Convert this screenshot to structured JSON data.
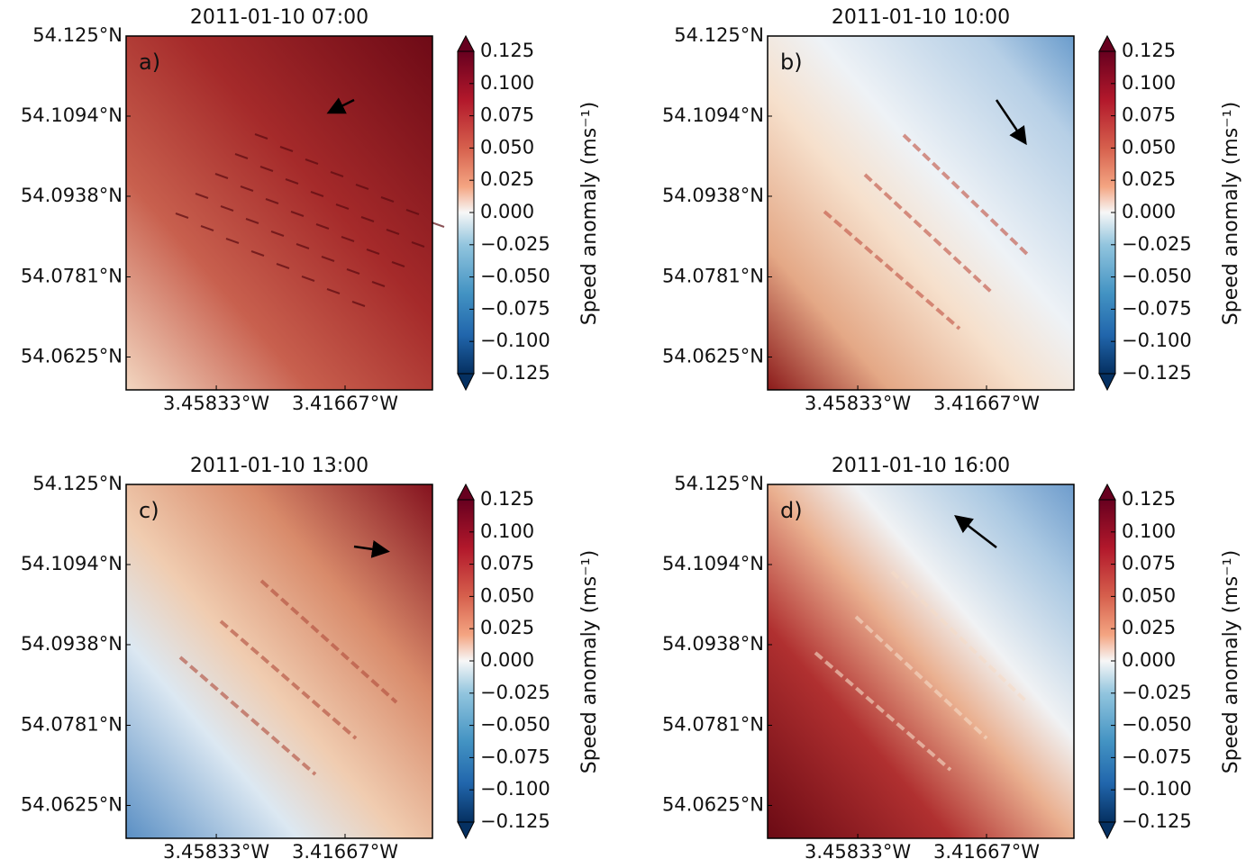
{
  "chart_data": [
    {
      "type": "heatmap",
      "title": "2011-01-10 07:00",
      "panel_label": "a)",
      "xlim": [
        -3.4875,
        -3.3884
      ],
      "xticks": [
        {
          "value": -3.45833,
          "label": "3.45833°W"
        },
        {
          "value": -3.41667,
          "label": "3.41667°W"
        }
      ],
      "ylim": [
        54.0561,
        54.125
      ],
      "yticks": [
        {
          "value": 54.125,
          "label": "54.125°N"
        },
        {
          "value": 54.1094,
          "label": "54.1094°N"
        },
        {
          "value": 54.0938,
          "label": "54.0938°N"
        },
        {
          "value": 54.0781,
          "label": "54.0781°N"
        },
        {
          "value": 54.0625,
          "label": "54.0625°N"
        }
      ],
      "colorbar": {
        "label": "Speed anomaly (ms⁻¹)",
        "lim": [
          -0.125,
          0.125
        ],
        "ticks": [
          {
            "value": 0.125,
            "label": "0.125"
          },
          {
            "value": 0.1,
            "label": "0.100"
          },
          {
            "value": 0.075,
            "label": "0.075"
          },
          {
            "value": 0.05,
            "label": "0.050"
          },
          {
            "value": 0.025,
            "label": "0.025"
          },
          {
            "value": 0,
            "label": "0.000"
          },
          {
            "value": -0.025,
            "label": "−0.025"
          },
          {
            "value": -0.05,
            "label": "−0.050"
          },
          {
            "value": -0.075,
            "label": "−0.075"
          },
          {
            "value": -0.1,
            "label": "−0.100"
          },
          {
            "value": -0.125,
            "label": "−0.125"
          }
        ]
      }
    },
    {
      "type": "heatmap",
      "title": "2011-01-10 10:00",
      "panel_label": "b)",
      "xlim": [
        -3.4875,
        -3.3884
      ],
      "xticks": [
        {
          "value": -3.45833,
          "label": "3.45833°W"
        },
        {
          "value": -3.41667,
          "label": "3.41667°W"
        }
      ],
      "ylim": [
        54.0561,
        54.125
      ],
      "yticks": [
        {
          "value": 54.125,
          "label": "54.125°N"
        },
        {
          "value": 54.1094,
          "label": "54.1094°N"
        },
        {
          "value": 54.0938,
          "label": "54.0938°N"
        },
        {
          "value": 54.0781,
          "label": "54.0781°N"
        },
        {
          "value": 54.0625,
          "label": "54.0625°N"
        }
      ],
      "colorbar": {
        "label": "Speed anomaly (ms⁻¹)",
        "lim": [
          -0.125,
          0.125
        ],
        "ticks": [
          {
            "value": 0.125,
            "label": "0.125"
          },
          {
            "value": 0.1,
            "label": "0.100"
          },
          {
            "value": 0.075,
            "label": "0.075"
          },
          {
            "value": 0.05,
            "label": "0.050"
          },
          {
            "value": 0.025,
            "label": "0.025"
          },
          {
            "value": 0,
            "label": "0.000"
          },
          {
            "value": -0.025,
            "label": "−0.025"
          },
          {
            "value": -0.05,
            "label": "−0.050"
          },
          {
            "value": -0.075,
            "label": "−0.075"
          },
          {
            "value": -0.1,
            "label": "−0.100"
          },
          {
            "value": -0.125,
            "label": "−0.125"
          }
        ]
      }
    },
    {
      "type": "heatmap",
      "title": "2011-01-10 13:00",
      "panel_label": "c)",
      "xlim": [
        -3.4875,
        -3.3884
      ],
      "xticks": [
        {
          "value": -3.45833,
          "label": "3.45833°W"
        },
        {
          "value": -3.41667,
          "label": "3.41667°W"
        }
      ],
      "ylim": [
        54.0561,
        54.125
      ],
      "yticks": [
        {
          "value": 54.125,
          "label": "54.125°N"
        },
        {
          "value": 54.1094,
          "label": "54.1094°N"
        },
        {
          "value": 54.0938,
          "label": "54.0938°N"
        },
        {
          "value": 54.0781,
          "label": "54.0781°N"
        },
        {
          "value": 54.0625,
          "label": "54.0625°N"
        }
      ],
      "colorbar": {
        "label": "Speed anomaly (ms⁻¹)",
        "lim": [
          -0.125,
          0.125
        ],
        "ticks": [
          {
            "value": 0.125,
            "label": "0.125"
          },
          {
            "value": 0.1,
            "label": "0.100"
          },
          {
            "value": 0.075,
            "label": "0.075"
          },
          {
            "value": 0.05,
            "label": "0.050"
          },
          {
            "value": 0.025,
            "label": "0.025"
          },
          {
            "value": 0,
            "label": "0.000"
          },
          {
            "value": -0.025,
            "label": "−0.025"
          },
          {
            "value": -0.05,
            "label": "−0.050"
          },
          {
            "value": -0.075,
            "label": "−0.075"
          },
          {
            "value": -0.1,
            "label": "−0.100"
          },
          {
            "value": -0.125,
            "label": "−0.125"
          }
        ]
      }
    },
    {
      "type": "heatmap",
      "title": "2011-01-10 16:00",
      "panel_label": "d)",
      "xlim": [
        -3.4875,
        -3.3884
      ],
      "xticks": [
        {
          "value": -3.45833,
          "label": "3.45833°W"
        },
        {
          "value": -3.41667,
          "label": "3.41667°W"
        }
      ],
      "ylim": [
        54.0561,
        54.125
      ],
      "yticks": [
        {
          "value": 54.125,
          "label": "54.125°N"
        },
        {
          "value": 54.1094,
          "label": "54.1094°N"
        },
        {
          "value": 54.0938,
          "label": "54.0938°N"
        },
        {
          "value": 54.0781,
          "label": "54.0781°N"
        },
        {
          "value": 54.0625,
          "label": "54.0625°N"
        }
      ],
      "colorbar": {
        "label": "Speed anomaly (ms⁻¹)",
        "lim": [
          -0.125,
          0.125
        ],
        "ticks": [
          {
            "value": 0.125,
            "label": "0.125"
          },
          {
            "value": 0.1,
            "label": "0.100"
          },
          {
            "value": 0.075,
            "label": "0.075"
          },
          {
            "value": 0.05,
            "label": "0.050"
          },
          {
            "value": 0.025,
            "label": "0.025"
          },
          {
            "value": 0,
            "label": "0.000"
          },
          {
            "value": -0.025,
            "label": "−0.025"
          },
          {
            "value": -0.05,
            "label": "−0.050"
          },
          {
            "value": -0.075,
            "label": "−0.075"
          },
          {
            "value": -0.1,
            "label": "−0.100"
          },
          {
            "value": -0.125,
            "label": "−0.125"
          }
        ]
      }
    }
  ]
}
